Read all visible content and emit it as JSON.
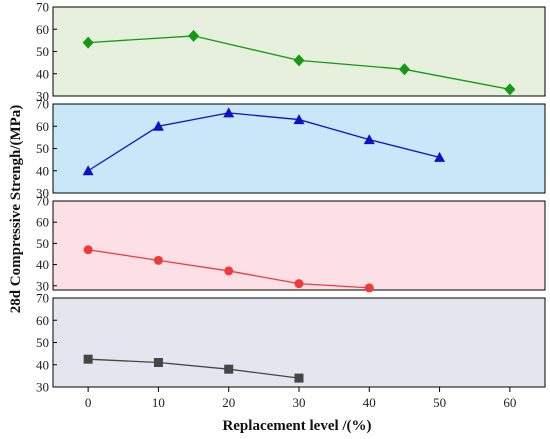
{
  "chart_data": [
    {
      "type": "line",
      "background": "#e6f0dc",
      "color": "#139a13",
      "marker": "diamond",
      "ylim": [
        30,
        70
      ],
      "yticks": [
        30,
        40,
        50,
        60,
        70
      ],
      "x": [
        0,
        15,
        30,
        45,
        60
      ],
      "y": [
        54,
        57,
        46,
        42,
        33
      ]
    },
    {
      "type": "line",
      "background": "#c8e8fa",
      "color": "#1010c8",
      "marker": "triangle",
      "ylim": [
        30,
        70
      ],
      "yticks": [
        30,
        40,
        50,
        60,
        70
      ],
      "x": [
        0,
        10,
        20,
        30,
        40,
        50
      ],
      "y": [
        40,
        60,
        66,
        63,
        54,
        46
      ]
    },
    {
      "type": "line",
      "background": "#fde0e6",
      "color": "#ef3a3a",
      "marker": "circle",
      "ylim": [
        28,
        70
      ],
      "yticks": [
        30,
        40,
        50,
        60,
        70
      ],
      "x": [
        0,
        10,
        20,
        30,
        40
      ],
      "y": [
        47,
        42,
        37,
        31,
        29
      ]
    },
    {
      "type": "line",
      "background": "#e4e5ee",
      "color": "#454545",
      "marker": "square",
      "ylim": [
        30,
        70
      ],
      "yticks": [
        30,
        40,
        50,
        60,
        70
      ],
      "x": [
        0,
        10,
        20,
        30
      ],
      "y": [
        42.5,
        41,
        38,
        34
      ]
    }
  ],
  "axes": {
    "xlabel": "Replacement level /(%)",
    "ylabel": "28d Compressive Strengh/(MPa)",
    "xlim": [
      -5,
      65
    ],
    "xticks": [
      0,
      10,
      20,
      30,
      40,
      50,
      60
    ]
  }
}
